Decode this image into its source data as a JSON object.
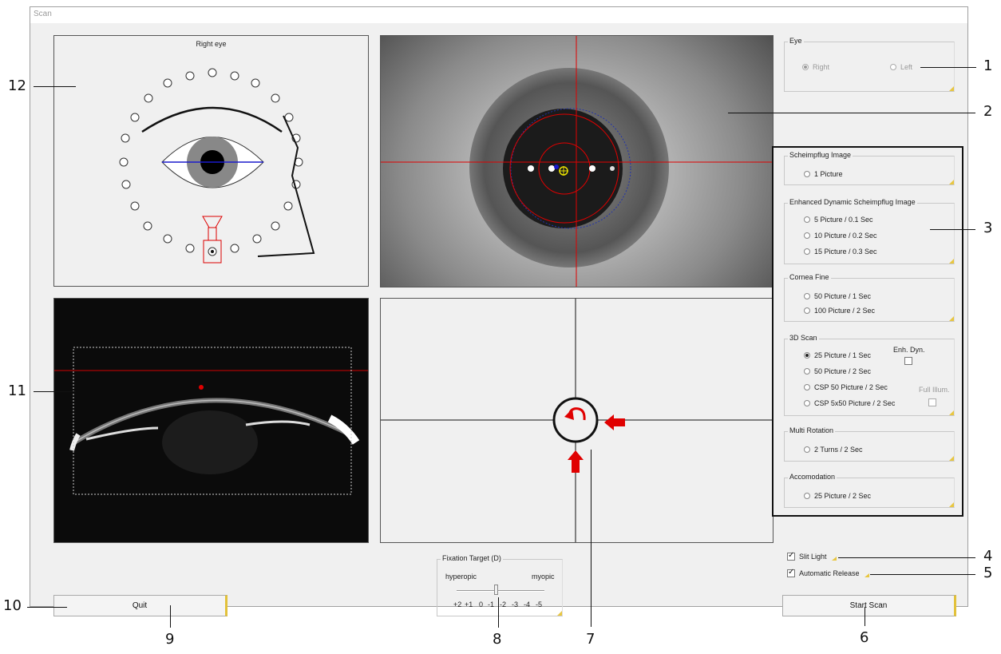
{
  "window": {
    "title": "Scan"
  },
  "eye_diagram": {
    "label": "Right eye"
  },
  "eye_group": {
    "title": "Eye",
    "options": [
      "Right",
      "Left"
    ]
  },
  "modes": {
    "scheimpflug": {
      "title": "Scheimpflug Image",
      "options": [
        "1 Picture"
      ]
    },
    "enhanced": {
      "title": "Enhanced Dynamic Scheimpflug Image",
      "options": [
        "5 Picture / 0.1 Sec",
        "10 Picture / 0.2 Sec",
        "15 Picture / 0.3 Sec"
      ]
    },
    "cornea_fine": {
      "title": "Cornea Fine",
      "options": [
        "50 Picture / 1 Sec",
        "100 Picture / 2 Sec"
      ]
    },
    "scan3d": {
      "title": "3D Scan",
      "options": [
        "25 Picture / 1 Sec",
        "50 Picture / 2 Sec",
        "CSP 50 Picture / 2 Sec",
        "CSP 5x50 Picture / 2 Sec"
      ],
      "enh_dyn_label": "Enh. Dyn.",
      "full_illum_label": "Full Illum."
    },
    "multi_rotation": {
      "title": "Multi Rotation",
      "options": [
        "2 Turns / 2 Sec"
      ]
    },
    "accomodation": {
      "title": "Accomodation",
      "options": [
        "25 Picture / 2 Sec"
      ]
    }
  },
  "checks": {
    "slit_light": "Slit Light",
    "automatic_release": "Automatic Release"
  },
  "fixation": {
    "title": "Fixation Target (D)",
    "left_label": "hyperopic",
    "right_label": "myopic",
    "ticks": [
      "+2",
      "+1",
      "0",
      "-1",
      "-2",
      "-3",
      "-4",
      "-5"
    ],
    "value": "-1"
  },
  "buttons": {
    "quit": "Quit",
    "start_scan": "Start Scan"
  },
  "callouts": {
    "c1": "1",
    "c2": "2",
    "c3": "3",
    "c4": "4",
    "c5": "5",
    "c6": "6",
    "c7": "7",
    "c8": "8",
    "c9": "9",
    "c10": "10",
    "c11": "11",
    "c12": "12"
  },
  "colors": {
    "accent": "#e2c13a",
    "crosshair": "#e00000",
    "fixation_marker": "#1a1acc"
  }
}
